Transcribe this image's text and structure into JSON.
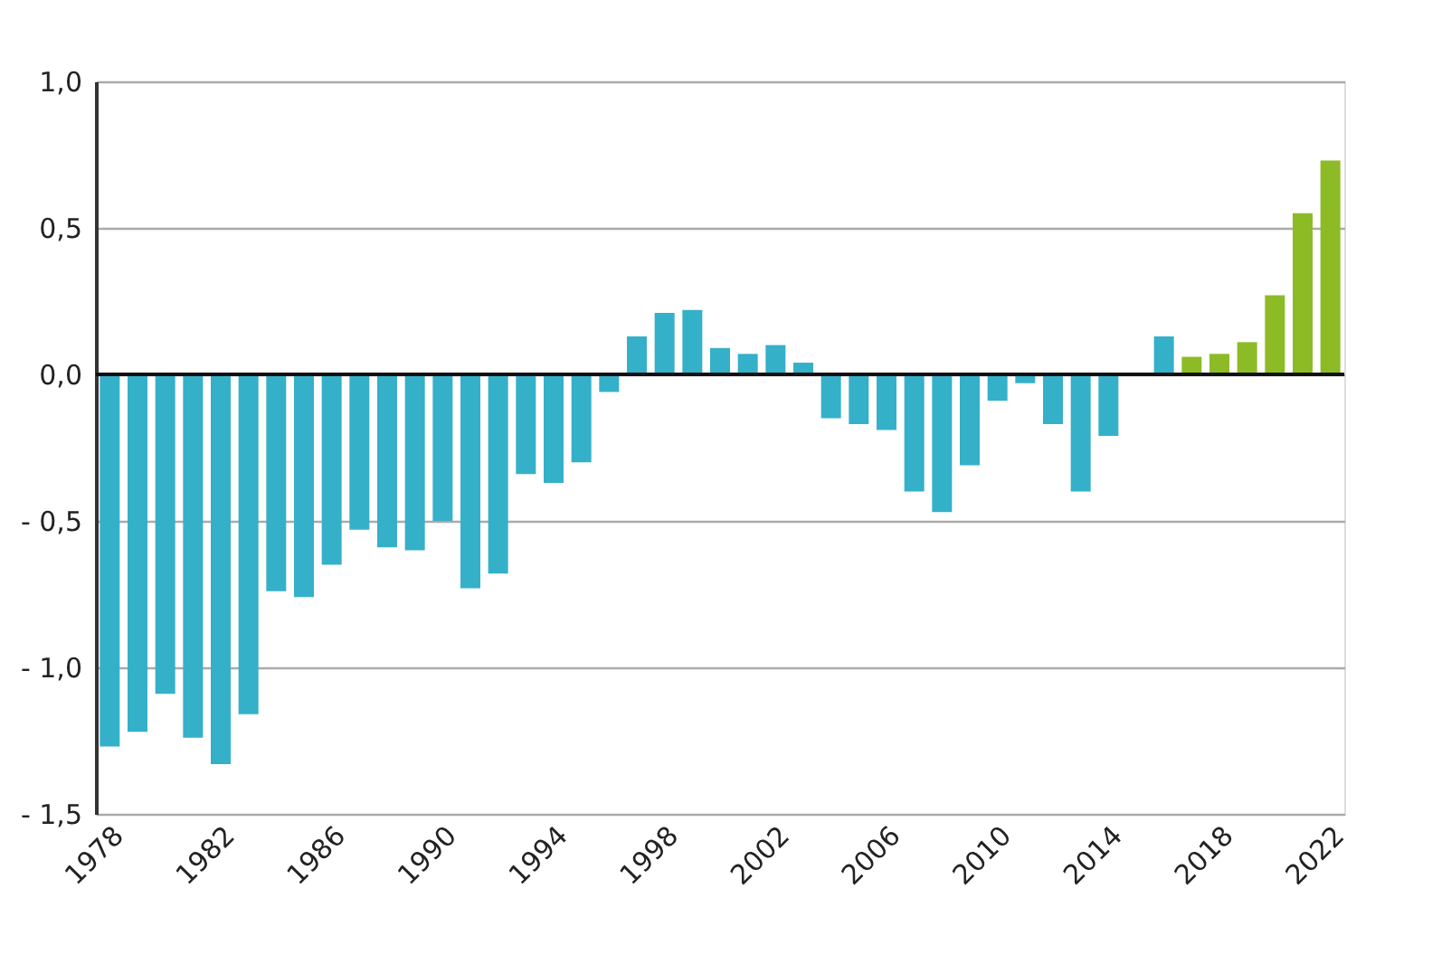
{
  "chart_data": {
    "type": "bar",
    "categories": [
      "1978",
      null,
      null,
      null,
      "1982",
      null,
      null,
      null,
      "1986",
      null,
      null,
      null,
      "1990",
      null,
      null,
      null,
      "1994",
      null,
      null,
      null,
      "1998",
      null,
      null,
      null,
      "2002",
      null,
      null,
      null,
      "2006",
      null,
      null,
      null,
      "2010",
      null,
      null,
      null,
      "2014",
      null,
      null,
      null,
      "2018",
      null,
      null,
      null,
      "2022"
    ],
    "values": [
      -1.27,
      -1.22,
      -1.09,
      -1.24,
      -1.33,
      -1.16,
      -0.74,
      -0.76,
      -0.65,
      -0.53,
      -0.59,
      -0.6,
      -0.5,
      -0.73,
      -0.68,
      -0.34,
      -0.37,
      -0.3,
      -0.06,
      0.13,
      0.21,
      0.22,
      0.09,
      0.07,
      0.1,
      0.04,
      -0.15,
      -0.17,
      -0.19,
      -0.4,
      -0.47,
      -0.31,
      -0.09,
      -0.03,
      -0.17,
      -0.4,
      -0.21,
      null,
      0.13,
      0.06,
      0.07,
      0.11,
      0.27,
      0.55,
      0.73
    ],
    "colors": [
      "#35b0c9",
      "#35b0c9",
      "#35b0c9",
      "#35b0c9",
      "#35b0c9",
      "#35b0c9",
      "#35b0c9",
      "#35b0c9",
      "#35b0c9",
      "#35b0c9",
      "#35b0c9",
      "#35b0c9",
      "#35b0c9",
      "#35b0c9",
      "#35b0c9",
      "#35b0c9",
      "#35b0c9",
      "#35b0c9",
      "#35b0c9",
      "#35b0c9",
      "#35b0c9",
      "#35b0c9",
      "#35b0c9",
      "#35b0c9",
      "#35b0c9",
      "#35b0c9",
      "#35b0c9",
      "#35b0c9",
      "#35b0c9",
      "#35b0c9",
      "#35b0c9",
      "#35b0c9",
      "#35b0c9",
      "#35b0c9",
      "#35b0c9",
      "#35b0c9",
      "#35b0c9",
      "#35b0c9",
      "#35b0c9",
      "#8dbb26",
      "#8dbb26",
      "#8dbb26",
      "#8dbb26",
      "#8dbb26",
      "#8dbb26"
    ],
    "ylim": [
      -1.5,
      1.0
    ],
    "yticks": [
      {
        "value": 1.0,
        "label": "1,0"
      },
      {
        "value": 0.5,
        "label": "0,5"
      },
      {
        "value": 0,
        "label": "0,0"
      },
      {
        "value": -0.5,
        "label": "- 0,5"
      },
      {
        "value": -1.0,
        "label": "- 1,0"
      },
      {
        "value": -1.5,
        "label": "- 1,5"
      }
    ],
    "grid": "y",
    "ref_lines": [
      {
        "axis": "y",
        "value": 0,
        "color": "#111111"
      }
    ]
  }
}
